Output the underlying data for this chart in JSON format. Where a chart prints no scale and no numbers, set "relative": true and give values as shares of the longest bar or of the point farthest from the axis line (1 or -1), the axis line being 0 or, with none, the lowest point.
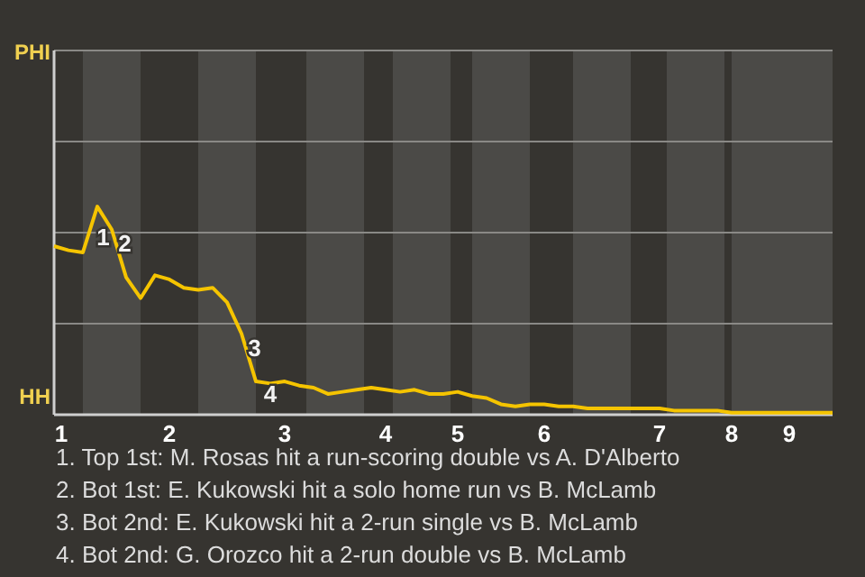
{
  "chart_data": {
    "type": "line",
    "relative": true,
    "categories": [
      "1",
      null,
      null,
      null,
      null,
      null,
      null,
      null,
      "2",
      null,
      null,
      null,
      null,
      null,
      null,
      null,
      "3",
      null,
      null,
      null,
      null,
      null,
      null,
      "4",
      null,
      null,
      null,
      null,
      "5",
      null,
      null,
      null,
      null,
      null,
      "6",
      null,
      null,
      null,
      null,
      null,
      null,
      null,
      "7",
      null,
      null,
      null,
      null,
      "8",
      null,
      null,
      null,
      "9",
      null,
      null,
      null
    ],
    "marker": "none",
    "line_style": "solid",
    "ref_lines": [
      {
        "axis": "y",
        "value": 0.4375,
        "color": "#8a8986"
      },
      {
        "axis": "y",
        "value": 0.875,
        "color": "#8a8986"
      },
      {
        "axis": "y",
        "value": 1.3125,
        "color": "#8a8986"
      },
      {
        "axis": "y",
        "value": 1.75,
        "color": "#8a8986"
      }
    ],
    "series": [
      {
        "color": "#f5c400",
        "values": [
          0.81,
          0.79,
          0.78,
          1,
          0.89,
          0.66,
          0.56,
          0.67,
          0.65,
          0.61,
          0.6,
          0.61,
          0.54,
          0.39,
          0.16,
          0.15,
          0.16,
          0.14,
          0.13,
          0.1,
          0.11,
          0.12,
          0.13,
          0.12,
          0.11,
          0.12,
          0.1,
          0.1,
          0.11,
          0.09,
          0.08,
          0.05,
          0.04,
          0.05,
          0.05,
          0.04,
          0.04,
          0.03,
          0.03,
          0.03,
          0.03,
          0.03,
          0.03,
          0.02,
          0.02,
          0.02,
          0.02,
          0.01,
          0.01,
          0.01,
          0.01,
          0.01,
          0.01,
          0.01,
          0.01
        ]
      }
    ],
    "annotations": [
      "PHI",
      "HH",
      "1",
      "2",
      "3",
      "4",
      "1. Top 1st: M. Rosas hit a run-scoring double vs A. D'Alberto",
      "2. Bot 1st: E. Kukowski hit a solo home run vs B. McLamb",
      "3. Bot 2nd: E. Kukowski hit a 2-run single vs B. McLamb",
      "4. Bot 2nd: G. Orozco hit a 2-run double vs B. McLamb"
    ]
  }
}
